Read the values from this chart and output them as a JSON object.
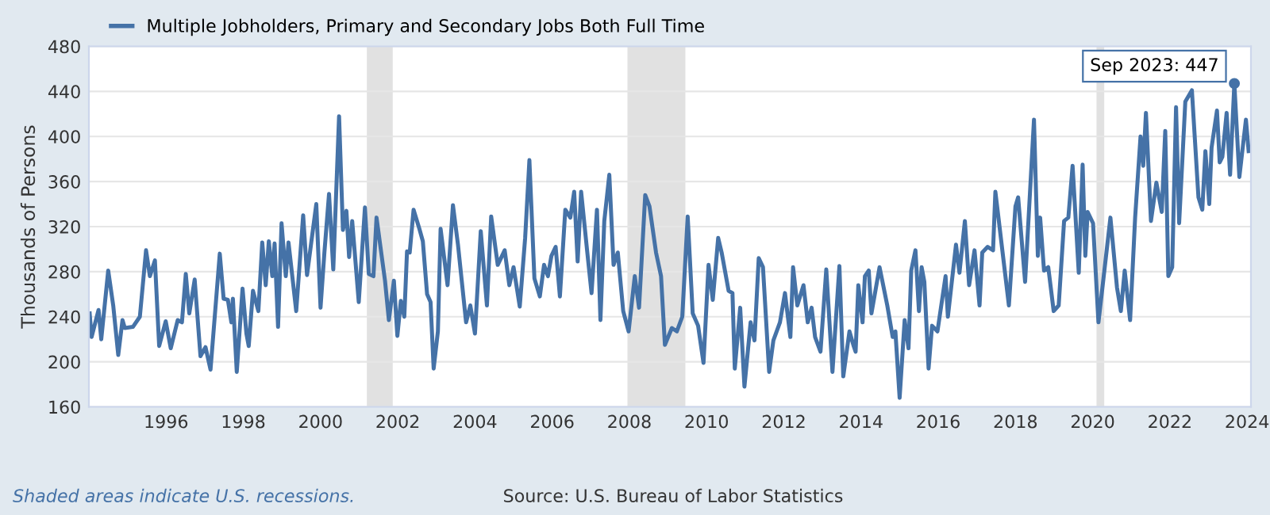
{
  "chart_data": {
    "type": "line",
    "ylabel": "Thousands of Persons",
    "x": [
      1994.02,
      1994.07,
      1994.25,
      1994.32,
      1994.5,
      1994.63,
      1994.76,
      1994.87,
      1994.93,
      1995.14,
      1995.32,
      1995.48,
      1995.58,
      1995.71,
      1995.82,
      1995.99,
      1996.12,
      1996.3,
      1996.41,
      1996.51,
      1996.6,
      1996.74,
      1996.89,
      1997.02,
      1997.15,
      1997.39,
      1997.49,
      1997.6,
      1997.69,
      1997.73,
      1997.83,
      1997.98,
      1998.08,
      1998.14,
      1998.25,
      1998.39,
      1998.49,
      1998.58,
      1998.66,
      1998.75,
      1998.81,
      1998.9,
      1998.99,
      1999.1,
      1999.17,
      1999.37,
      1999.55,
      1999.65,
      1999.76,
      1999.89,
      2000.0,
      2000.1,
      2000.22,
      2000.33,
      2000.48,
      2000.58,
      2000.67,
      2000.74,
      2000.82,
      2000.99,
      2001.15,
      2001.25,
      2001.37,
      2001.45,
      2001.67,
      2001.77,
      2001.9,
      2001.99,
      2002.08,
      2002.17,
      2002.24,
      2002.31,
      2002.41,
      2002.56,
      2002.65,
      2002.76,
      2002.85,
      2002.93,
      2003.04,
      2003.11,
      2003.29,
      2003.43,
      2003.56,
      2003.77,
      2003.88,
      2004.0,
      2004.15,
      2004.31,
      2004.42,
      2004.59,
      2004.77,
      2004.89,
      2005.0,
      2005.16,
      2005.3,
      2005.41,
      2005.54,
      2005.68,
      2005.79,
      2005.89,
      2005.98,
      2006.09,
      2006.2,
      2006.34,
      2006.47,
      2006.57,
      2006.66,
      2006.75,
      2006.91,
      2007.02,
      2007.16,
      2007.25,
      2007.35,
      2007.48,
      2007.59,
      2007.7,
      2007.84,
      2007.98,
      2008.14,
      2008.25,
      2008.41,
      2008.52,
      2008.69,
      2008.82,
      2008.92,
      2009.1,
      2009.23,
      2009.37,
      2009.51,
      2009.64,
      2009.78,
      2009.92,
      2010.05,
      2010.16,
      2010.3,
      2010.39,
      2010.57,
      2010.67,
      2010.73,
      2010.87,
      2010.98,
      2011.14,
      2011.24,
      2011.35,
      2011.46,
      2011.62,
      2011.73,
      2011.9,
      2012.03,
      2012.17,
      2012.24,
      2012.35,
      2012.51,
      2012.62,
      2012.72,
      2012.81,
      2012.95,
      2013.1,
      2013.26,
      2013.44,
      2013.54,
      2013.7,
      2013.81,
      2013.86,
      2013.93,
      2014.04,
      2014.1,
      2014.2,
      2014.27,
      2014.48,
      2014.68,
      2014.82,
      2014.89,
      2015.0,
      2015.13,
      2015.23,
      2015.3,
      2015.41,
      2015.5,
      2015.57,
      2015.64,
      2015.75,
      2015.84,
      2015.98,
      2016.19,
      2016.25,
      2016.46,
      2016.55,
      2016.69,
      2016.8,
      2016.94,
      2017.07,
      2017.14,
      2017.28,
      2017.42,
      2017.48,
      2017.65,
      2017.83,
      2018.0,
      2018.07,
      2018.25,
      2018.48,
      2018.58,
      2018.64,
      2018.74,
      2018.85,
      2018.99,
      2019.12,
      2019.26,
      2019.37,
      2019.48,
      2019.64,
      2019.74,
      2019.81,
      2019.87,
      2020.01,
      2020.15,
      2020.28,
      2020.46,
      2020.63,
      2020.73,
      2020.83,
      2020.97,
      2021.1,
      2021.24,
      2021.31,
      2021.38,
      2021.51,
      2021.65,
      2021.79,
      2021.88,
      2021.96,
      2022.06,
      2022.16,
      2022.24,
      2022.4,
      2022.57,
      2022.74,
      2022.84,
      2022.92,
      2023.02,
      2023.08,
      2023.22,
      2023.29,
      2023.36,
      2023.47,
      2023.56,
      2023.67,
      2023.8,
      2023.97,
      2024.04
    ],
    "series": [
      {
        "name": "Multiple Jobholders, Primary and Secondary Jobs Both Full Time",
        "color": "#4572a7",
        "values": [
          243,
          222,
          246,
          220,
          281,
          250,
          206,
          237,
          230,
          231,
          240,
          299,
          276,
          290,
          214,
          236,
          212,
          237,
          235,
          278,
          243,
          273,
          205,
          213,
          193,
          296,
          256,
          255,
          235,
          256,
          191,
          265,
          225,
          214,
          263,
          245,
          306,
          268,
          307,
          276,
          305,
          231,
          323,
          276,
          306,
          245,
          330,
          277,
          306,
          340,
          248,
          297,
          349,
          282,
          418,
          317,
          334,
          293,
          325,
          253,
          337,
          278,
          276,
          328,
          272,
          237,
          272,
          223,
          254,
          240,
          298,
          297,
          335,
          318,
          307,
          260,
          253,
          194,
          227,
          318,
          268,
          339,
          304,
          235,
          250,
          225,
          316,
          250,
          329,
          286,
          299,
          268,
          284,
          249,
          310,
          379,
          274,
          258,
          286,
          276,
          294,
          302,
          258,
          335,
          328,
          351,
          289,
          351,
          297,
          261,
          335,
          237,
          325,
          366,
          286,
          297,
          245,
          227,
          276,
          248,
          348,
          338,
          297,
          276,
          215,
          230,
          227,
          240,
          329,
          243,
          232,
          199,
          286,
          255,
          310,
          297,
          263,
          261,
          194,
          248,
          178,
          235,
          219,
          292,
          284,
          191,
          219,
          235,
          261,
          222,
          284,
          250,
          268,
          235,
          248,
          222,
          209,
          282,
          191,
          285,
          187,
          227,
          214,
          209,
          268,
          235,
          276,
          281,
          243,
          284,
          250,
          222,
          227,
          168,
          237,
          212,
          281,
          299,
          245,
          284,
          271,
          194,
          232,
          227,
          276,
          240,
          304,
          279,
          325,
          268,
          299,
          250,
          297,
          302,
          299,
          351,
          302,
          250,
          338,
          346,
          271,
          415,
          294,
          328,
          281,
          284,
          245,
          250,
          325,
          328,
          374,
          279,
          375,
          294,
          333,
          323,
          235,
          274,
          328,
          266,
          245,
          281,
          237,
          328,
          400,
          374,
          421,
          325,
          359,
          333,
          405,
          276,
          284,
          426,
          323,
          431,
          441,
          346,
          335,
          387,
          340,
          390,
          423,
          377,
          382,
          421,
          366,
          447,
          364,
          415,
          387
        ]
      }
    ],
    "xlim": [
      1994.0,
      2024.1
    ],
    "ylim": [
      160,
      480
    ],
    "xticks": [
      1996,
      1998,
      2000,
      2002,
      2004,
      2006,
      2008,
      2010,
      2012,
      2014,
      2016,
      2018,
      2020,
      2022,
      2024
    ],
    "yticks": [
      160,
      200,
      240,
      280,
      320,
      360,
      400,
      440,
      480
    ],
    "grid": "y",
    "legend": "top left",
    "bands": [
      {
        "axis": "x",
        "from": 2001.2,
        "to": 2001.87,
        "color": "#e1e1e1"
      },
      {
        "axis": "x",
        "from": 2007.95,
        "to": 2009.45,
        "color": "#e1e1e1"
      },
      {
        "axis": "x",
        "from": 2020.1,
        "to": 2020.3,
        "color": "#e1e1e1"
      }
    ],
    "annotations": [
      {
        "text": "Sep 2023: 447",
        "x": 2023.67,
        "y": 447
      },
      "Shaded areas indicate U.S. recessions.",
      "Source: U.S. Bureau of Labor Statistics"
    ]
  }
}
